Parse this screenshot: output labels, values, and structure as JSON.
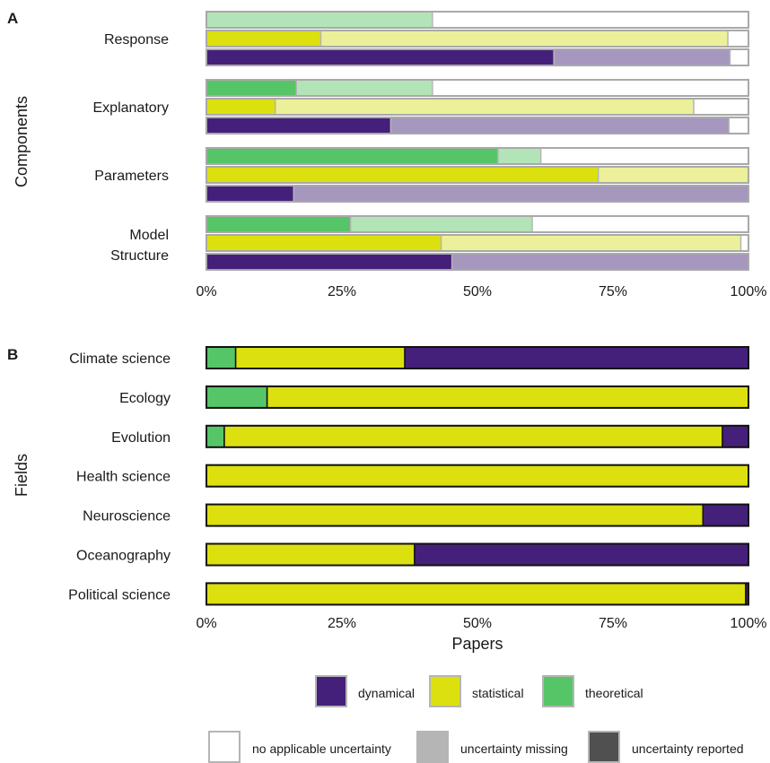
{
  "panel_a_label": "A",
  "panel_b_label": "B",
  "legend": {
    "types": [
      {
        "label": "dynamical",
        "color": "#45207A"
      },
      {
        "label": "statistical",
        "color": "#DCE00E"
      },
      {
        "label": "theoretical",
        "color": "#56C567"
      }
    ],
    "uncertainty": [
      {
        "label": "no applicable uncertainty",
        "color": "#FFFFFF"
      },
      {
        "label": "uncertainty missing",
        "color": "#B5B5B5"
      },
      {
        "label": "uncertainty reported",
        "color": "#505050"
      }
    ]
  },
  "chart_data": [
    {
      "type": "bar",
      "orientation": "horizontal",
      "stacked": true,
      "ylabel": "Components",
      "xlim": [
        0,
        100
      ],
      "xticks": [
        "0%",
        "25%",
        "50%",
        "75%",
        "100%"
      ],
      "groups": [
        {
          "label": "Response",
          "bars": [
            {
              "type": "theoretical",
              "reported": 0,
              "missing": 41.7,
              "not_applicable": 58.3
            },
            {
              "type": "statistical",
              "reported": 21.1,
              "missing": 75.1,
              "not_applicable": 3.8
            },
            {
              "type": "dynamical",
              "reported": 64.1,
              "missing": 32.5,
              "not_applicable": 3.4
            }
          ]
        },
        {
          "label": "Explanatory",
          "bars": [
            {
              "type": "theoretical",
              "reported": 16.6,
              "missing": 25.1,
              "not_applicable": 58.3
            },
            {
              "type": "statistical",
              "reported": 12.7,
              "missing": 77.2,
              "not_applicable": 10.1
            },
            {
              "type": "dynamical",
              "reported": 34.0,
              "missing": 62.4,
              "not_applicable": 3.6
            }
          ]
        },
        {
          "label": "Parameters",
          "bars": [
            {
              "type": "theoretical",
              "reported": 53.8,
              "missing": 7.9,
              "not_applicable": 38.3
            },
            {
              "type": "statistical",
              "reported": 72.3,
              "missing": 27.7,
              "not_applicable": 0
            },
            {
              "type": "dynamical",
              "reported": 16.1,
              "missing": 83.9,
              "not_applicable": 0
            }
          ]
        },
        {
          "label": "Model\nStructure",
          "bars": [
            {
              "type": "theoretical",
              "reported": 26.6,
              "missing": 33.5,
              "not_applicable": 39.9
            },
            {
              "type": "statistical",
              "reported": 43.3,
              "missing": 55.3,
              "not_applicable": 1.4
            },
            {
              "type": "dynamical",
              "reported": 45.3,
              "missing": 54.7,
              "not_applicable": 0
            }
          ]
        }
      ]
    },
    {
      "type": "bar",
      "orientation": "horizontal",
      "stacked": true,
      "ylabel": "Fields",
      "xlabel": "Papers",
      "xlim": [
        0,
        100
      ],
      "xticks": [
        "0%",
        "25%",
        "50%",
        "75%",
        "100%"
      ],
      "categories": [
        "Climate science",
        "Ecology",
        "Evolution",
        "Health science",
        "Neuroscience",
        "Oceanography",
        "Political science"
      ],
      "series": [
        {
          "name": "theoretical",
          "values": [
            5.4,
            11.2,
            3.3,
            0,
            0,
            0,
            0
          ]
        },
        {
          "name": "statistical",
          "values": [
            31.2,
            88.8,
            91.9,
            100,
            91.6,
            38.4,
            99.5
          ]
        },
        {
          "name": "dynamical",
          "values": [
            63.4,
            0,
            4.8,
            0,
            8.4,
            61.6,
            0.5
          ]
        }
      ]
    }
  ]
}
